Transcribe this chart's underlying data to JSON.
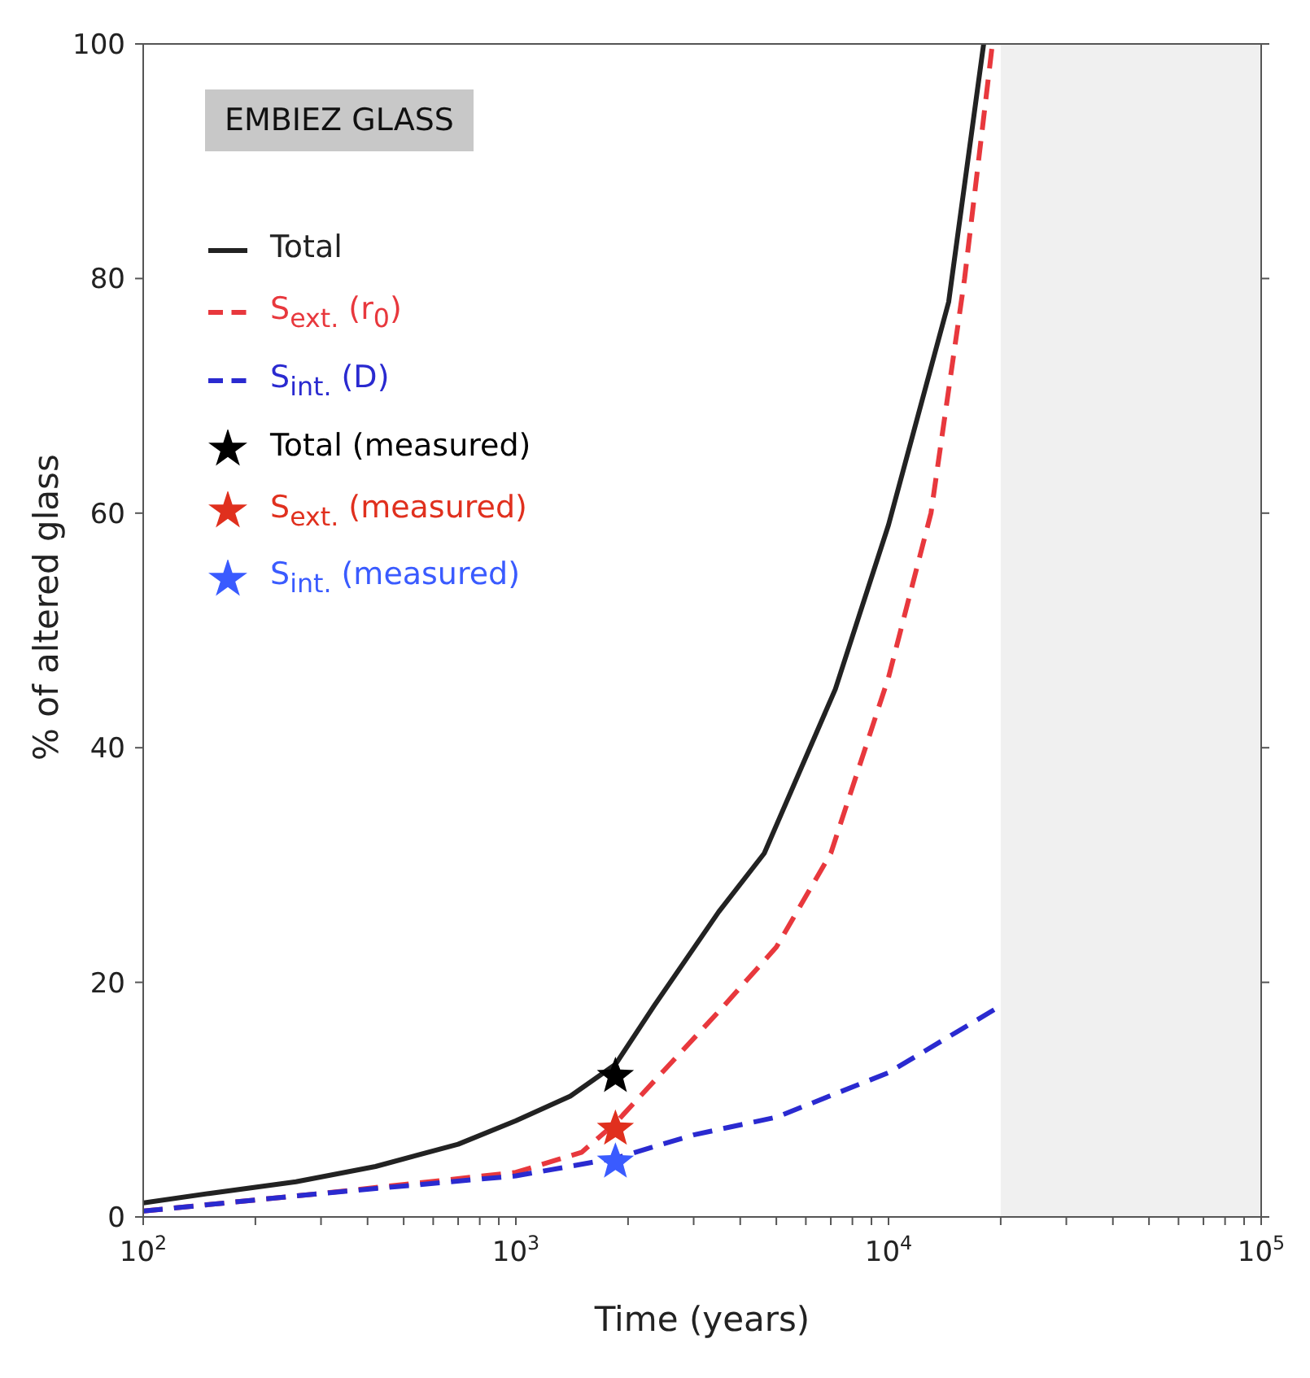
{
  "chart_data": {
    "type": "line",
    "xlabel": "Time (years)",
    "ylabel": "% of altered glass",
    "annotations": [
      "EMBIEZ GLASS"
    ],
    "log": "x",
    "xlim": [
      100,
      100000
    ],
    "ylim": [
      0,
      100
    ],
    "xticks": [
      {
        "value": 100,
        "label": "10$^{2}$"
      },
      {
        "value": 200,
        "label": null
      },
      {
        "value": 300,
        "label": null
      },
      {
        "value": 400,
        "label": null
      },
      {
        "value": 500,
        "label": null
      },
      {
        "value": 600,
        "label": null
      },
      {
        "value": 700,
        "label": null
      },
      {
        "value": 800,
        "label": null
      },
      {
        "value": 900,
        "label": null
      },
      {
        "value": 1000,
        "label": "10$^{3}$"
      },
      {
        "value": 2000,
        "label": null
      },
      {
        "value": 3000,
        "label": null
      },
      {
        "value": 4000,
        "label": null
      },
      {
        "value": 5000,
        "label": null
      },
      {
        "value": 6000,
        "label": null
      },
      {
        "value": 7000,
        "label": null
      },
      {
        "value": 8000,
        "label": null
      },
      {
        "value": 9000,
        "label": null
      },
      {
        "value": 10000,
        "label": "10$^{4}$"
      },
      {
        "value": 20000,
        "label": null
      },
      {
        "value": 30000,
        "label": null
      },
      {
        "value": 40000,
        "label": null
      },
      {
        "value": 50000,
        "label": null
      },
      {
        "value": 60000,
        "label": null
      },
      {
        "value": 70000,
        "label": null
      },
      {
        "value": 80000,
        "label": null
      },
      {
        "value": 90000,
        "label": null
      },
      {
        "value": 100000,
        "label": "10$^{5}$"
      }
    ],
    "yticks": [
      0,
      20,
      40,
      60,
      80,
      100
    ],
    "grid": false,
    "legend": "top left",
    "bands": [
      {
        "axis": "x",
        "from": 20000,
        "to": 100000,
        "color": "#f0f0f0"
      }
    ],
    "series": [
      {
        "name": "Total",
        "color": "#222222",
        "line_style": "solid",
        "marker": "none",
        "x": [
          100,
          150,
          257,
          420,
          700,
          1000,
          1400,
          1850,
          2350,
          3500,
          4640,
          7200,
          10000,
          14500,
          18000
        ],
        "values": [
          1.2,
          2,
          3,
          4.3,
          6.2,
          8.2,
          10.3,
          13,
          18,
          26,
          31,
          45,
          59,
          78,
          100
        ]
      },
      {
        "name": "S$_{ext.}$ (r$_{0}$)",
        "color": "#e8383d",
        "line_style": "dashed",
        "marker": "none",
        "x": [
          100,
          300,
          1000,
          1500,
          1850,
          2500,
          3500,
          5000,
          7000,
          10000,
          13000,
          16000,
          19000
        ],
        "values": [
          0.5,
          2,
          3.8,
          5.5,
          8,
          12.5,
          17.5,
          23,
          31,
          46,
          60,
          80,
          100
        ]
      },
      {
        "name": "S$_{int.}$ (D)",
        "color": "#2a2ad0",
        "line_style": "dashed",
        "marker": "none",
        "x": [
          100,
          300,
          1000,
          1850,
          3000,
          5000,
          10000,
          20000
        ],
        "values": [
          0.5,
          2,
          3.5,
          5,
          7,
          8.5,
          12.3,
          18
        ]
      },
      {
        "name": "Total (measured)",
        "type": "scatter",
        "color": "#000000",
        "marker": "star",
        "x": [
          1850
        ],
        "values": [
          12
        ]
      },
      {
        "name": "S$_{ext.}$ (measured)",
        "type": "scatter",
        "color": "#e0301e",
        "marker": "star",
        "x": [
          1850
        ],
        "values": [
          7.5
        ]
      },
      {
        "name": "S$_{int.}$ (measured)",
        "type": "scatter",
        "color": "#3a5bff",
        "marker": "star",
        "x": [
          1850
        ],
        "values": [
          4.7
        ]
      }
    ]
  }
}
